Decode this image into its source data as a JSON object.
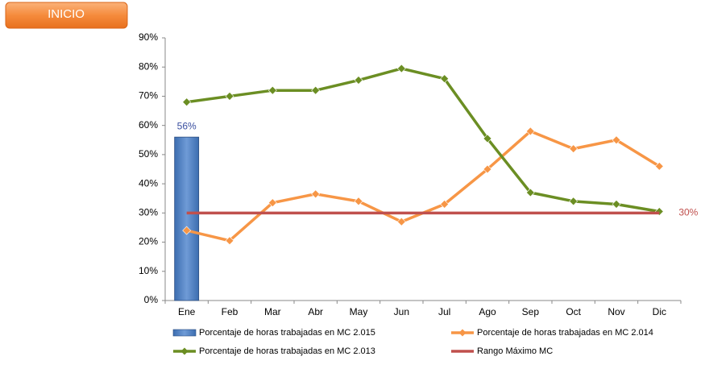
{
  "button": {
    "label": "INICIO"
  },
  "chart_data": {
    "type": "combo",
    "categories": [
      "Ene",
      "Feb",
      "Mar",
      "Abr",
      "May",
      "Jun",
      "Jul",
      "Ago",
      "Sep",
      "Oct",
      "Nov",
      "Dic"
    ],
    "series": [
      {
        "name": "Porcentaje de horas trabajadas en MC 2.015",
        "type": "bar",
        "color": "#4f81bd",
        "values": [
          56,
          null,
          null,
          null,
          null,
          null,
          null,
          null,
          null,
          null,
          null,
          null
        ],
        "value_labels": [
          "56%",
          null,
          null,
          null,
          null,
          null,
          null,
          null,
          null,
          null,
          null,
          null
        ]
      },
      {
        "name": "Porcentaje de horas trabajadas en MC 2.014",
        "type": "line",
        "color": "#f79646",
        "values": [
          24,
          20.5,
          33.5,
          36.5,
          34,
          27,
          33,
          45,
          58,
          52,
          55,
          46
        ]
      },
      {
        "name": "Porcentaje de horas trabajadas en MC 2.013",
        "type": "line",
        "color": "#6b8e23",
        "values": [
          68,
          70,
          72,
          72,
          75.5,
          79.5,
          76,
          55.5,
          37,
          34,
          33,
          30.5
        ]
      },
      {
        "name": "Rango Máximo MC",
        "type": "line",
        "color": "#c0504d",
        "markers": false,
        "values": [
          30,
          30,
          30,
          30,
          30,
          30,
          30,
          30,
          30,
          30,
          30,
          30
        ],
        "value_labels": [
          null,
          null,
          null,
          null,
          null,
          null,
          null,
          null,
          null,
          null,
          null,
          "30%"
        ]
      }
    ],
    "ylim": [
      0,
      90
    ],
    "yticks": [
      {
        "value": 0,
        "label": "0%"
      },
      {
        "value": 10,
        "label": "10%"
      },
      {
        "value": 20,
        "label": "20%"
      },
      {
        "value": 30,
        "label": "30%"
      },
      {
        "value": 40,
        "label": "40%"
      },
      {
        "value": 50,
        "label": "50%"
      },
      {
        "value": 60,
        "label": "60%"
      },
      {
        "value": 70,
        "label": "70%"
      },
      {
        "value": 80,
        "label": "80%"
      },
      {
        "value": 90,
        "label": "90%"
      }
    ],
    "grid": false,
    "legend": "bottom"
  }
}
